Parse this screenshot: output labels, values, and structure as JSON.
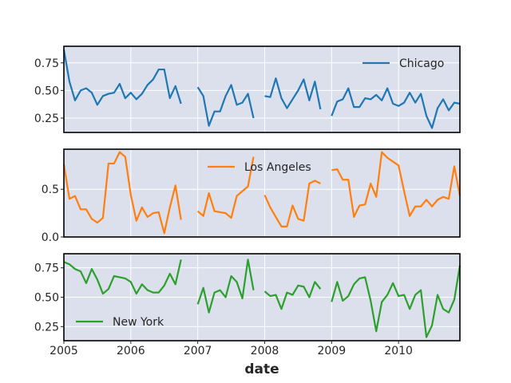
{
  "chart_data": {
    "type": "line",
    "xlabel": "date",
    "x_ticks": [
      "2005",
      "2006",
      "2007",
      "2008",
      "2009",
      "2010"
    ],
    "x_range": [
      "2005-01",
      "2010-12"
    ],
    "grid": true,
    "panels": [
      {
        "name": "Chicago",
        "color": "#1f77b4",
        "legend_position": "upper right",
        "ylim": [
          0.12,
          0.9
        ],
        "y_ticks": [
          "0.25",
          "0.50",
          "0.75"
        ],
        "y_tick_values": [
          0.25,
          0.5,
          0.75
        ],
        "segments": [
          {
            "start": "2005-01",
            "values": [
              0.87,
              0.58,
              0.41,
              0.5,
              0.52,
              0.48,
              0.37,
              0.45,
              0.47,
              0.48,
              0.56,
              0.43,
              0.48,
              0.42,
              0.47,
              0.55,
              0.6,
              0.69,
              0.69,
              0.43,
              0.54,
              0.38
            ]
          },
          {
            "start": "2007-01",
            "values": [
              0.53,
              0.45,
              0.18,
              0.31,
              0.31,
              0.45,
              0.55,
              0.37,
              0.39,
              0.47,
              0.25
            ]
          },
          {
            "start": "2008-01",
            "values": [
              0.45,
              0.44,
              0.61,
              0.43,
              0.34,
              0.42,
              0.5,
              0.6,
              0.41,
              0.58,
              0.33
            ]
          },
          {
            "start": "2009-01",
            "values": [
              0.27,
              0.4,
              0.42,
              0.52,
              0.35,
              0.35,
              0.43,
              0.42,
              0.46,
              0.41,
              0.52,
              0.38,
              0.36,
              0.39,
              0.48,
              0.39,
              0.47,
              0.27,
              0.16,
              0.34,
              0.42,
              0.32,
              0.39,
              0.38
            ]
          }
        ]
      },
      {
        "name": "Los Angeles",
        "color": "#ff7f0e",
        "legend_position": "upper center",
        "ylim": [
          0.0,
          0.92
        ],
        "y_ticks": [
          "0.0",
          "0.5"
        ],
        "y_tick_values": [
          0.0,
          0.5
        ],
        "segments": [
          {
            "start": "2005-01",
            "values": [
              0.76,
              0.4,
              0.43,
              0.29,
              0.29,
              0.19,
              0.15,
              0.2,
              0.77,
              0.77,
              0.89,
              0.84,
              0.44,
              0.17,
              0.31,
              0.21,
              0.25,
              0.26,
              0.04,
              0.31,
              0.54,
              0.18
            ]
          },
          {
            "start": "2007-01",
            "values": [
              0.27,
              0.22,
              0.46,
              0.27,
              0.26,
              0.25,
              0.2,
              0.43,
              0.48,
              0.53,
              0.84
            ]
          },
          {
            "start": "2008-01",
            "values": [
              0.44,
              0.31,
              0.21,
              0.11,
              0.11,
              0.33,
              0.19,
              0.17,
              0.56,
              0.59,
              0.56
            ]
          },
          {
            "start": "2009-01",
            "values": [
              0.7,
              0.71,
              0.6,
              0.6,
              0.21,
              0.33,
              0.34,
              0.56,
              0.42,
              0.89,
              0.83,
              0.79,
              0.75,
              0.48,
              0.22,
              0.32,
              0.32,
              0.39,
              0.32,
              0.39,
              0.42,
              0.4,
              0.74,
              0.43
            ]
          }
        ]
      },
      {
        "name": "New York",
        "color": "#2ca02c",
        "legend_position": "lower left",
        "ylim": [
          0.13,
          0.87
        ],
        "y_ticks": [
          "0.25",
          "0.50",
          "0.75"
        ],
        "y_tick_values": [
          0.25,
          0.5,
          0.75
        ],
        "segments": [
          {
            "start": "2005-01",
            "values": [
              0.8,
              0.78,
              0.74,
              0.72,
              0.62,
              0.74,
              0.65,
              0.53,
              0.57,
              0.68,
              0.67,
              0.66,
              0.63,
              0.53,
              0.61,
              0.56,
              0.54,
              0.54,
              0.6,
              0.7,
              0.61,
              0.82
            ]
          },
          {
            "start": "2007-01",
            "values": [
              0.44,
              0.58,
              0.37,
              0.54,
              0.56,
              0.5,
              0.68,
              0.63,
              0.49,
              0.82,
              0.56
            ]
          },
          {
            "start": "2008-01",
            "values": [
              0.55,
              0.51,
              0.52,
              0.4,
              0.54,
              0.52,
              0.6,
              0.59,
              0.5,
              0.63,
              0.57
            ]
          },
          {
            "start": "2009-01",
            "values": [
              0.46,
              0.63,
              0.47,
              0.51,
              0.61,
              0.66,
              0.67,
              0.47,
              0.21,
              0.46,
              0.52,
              0.62,
              0.51,
              0.52,
              0.4,
              0.52,
              0.56,
              0.16,
              0.26,
              0.52,
              0.4,
              0.37,
              0.48,
              0.77
            ]
          }
        ]
      }
    ]
  }
}
